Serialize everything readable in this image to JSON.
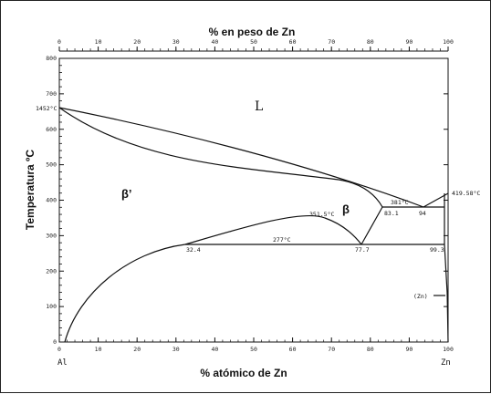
{
  "diagram": {
    "top_axis_title": "% en peso de Zn",
    "bottom_axis_title": "% atómico de  Zn",
    "left_axis_title": "Temperatura  ºC",
    "left_element": "Al",
    "right_element": "Zn",
    "y_ticks": [
      "0",
      "100",
      "200",
      "300",
      "400",
      "500",
      "600",
      "700",
      "800"
    ],
    "x_bottom_ticks": [
      "0",
      "10",
      "20",
      "30",
      "40",
      "50",
      "60",
      "70",
      "80",
      "90",
      "100"
    ],
    "x_top_ticks": [
      "0",
      "10",
      "20",
      "30",
      "40",
      "50",
      "60",
      "70",
      "80",
      "90",
      "100"
    ],
    "labels": {
      "al_melting": "1452°C",
      "zn_melting": "419.58°C",
      "monotectoid": "351.5°C",
      "eutectic_temp": "381°C",
      "eutectoid_temp": "277°C",
      "c_831": "83.1",
      "c_94": "94",
      "c_324": "32.4",
      "c_777": "77.7",
      "c_993": "99.3",
      "zn_phase": "(Zn)"
    },
    "phases": {
      "liquid": "L",
      "beta_prime": "β’",
      "beta": "β"
    }
  }
}
